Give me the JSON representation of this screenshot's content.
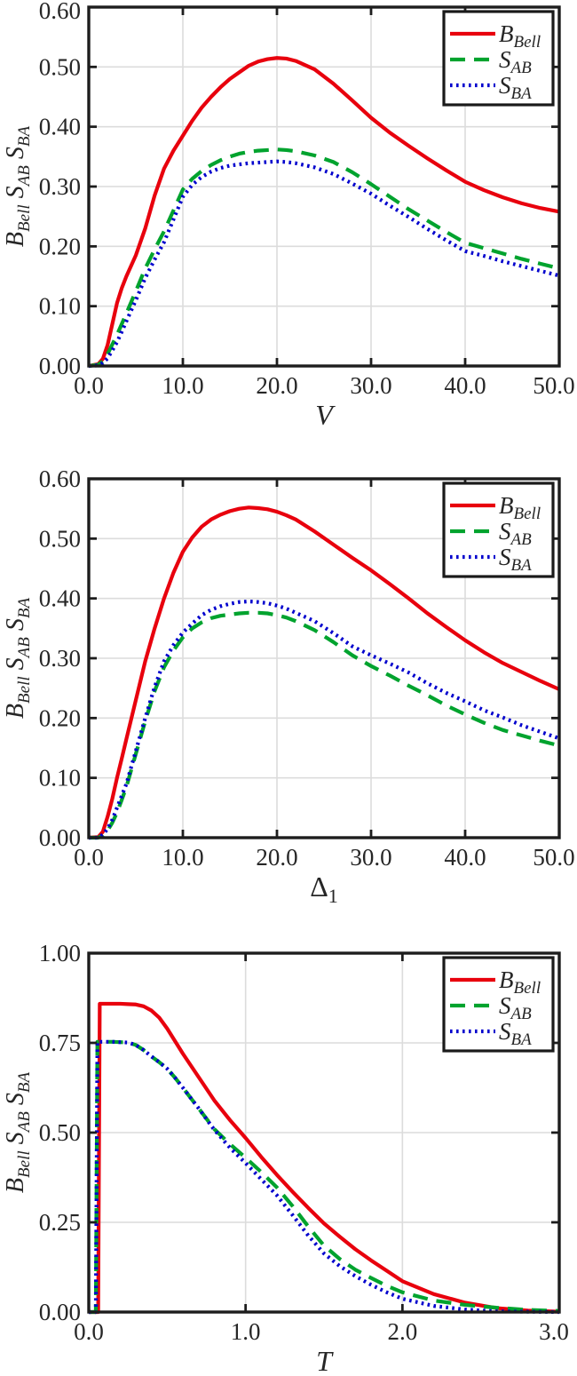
{
  "figure": {
    "background": "#ffffff",
    "text_color": "#262626",
    "frame_color": "#1d1d1d",
    "grid_color": "#dcdcdc"
  },
  "chart_data": [
    {
      "type": "line",
      "title": "",
      "xlabel": {
        "main": "V",
        "sub": "",
        "italic": true
      },
      "ylabel": "B_Bell S_AB S_BA",
      "ylabel_parts": [
        {
          "main": "B",
          "sub": "Bell"
        },
        {
          "main": "S",
          "sub": "AB"
        },
        {
          "main": "S",
          "sub": "BA"
        }
      ],
      "xlim": [
        0,
        50
      ],
      "ylim": [
        0,
        0.6
      ],
      "grid": true,
      "xtick_values": [
        0,
        10,
        20,
        30,
        40,
        50
      ],
      "xtick_labels": [
        "0.0",
        "10.0",
        "20.0",
        "30.0",
        "40.0",
        "50.0"
      ],
      "ytick_values": [
        0,
        0.1,
        0.2,
        0.3,
        0.4,
        0.5,
        0.6
      ],
      "ytick_labels": [
        "0.00",
        "0.10",
        "0.20",
        "0.30",
        "0.40",
        "0.50",
        "0.60"
      ],
      "legend": {
        "position": "top-right",
        "entries": [
          {
            "name": "B_Bell",
            "label_main": "B",
            "label_sub": "Bell",
            "color": "#e8000d",
            "style": "solid"
          },
          {
            "name": "S_AB",
            "label_main": "S",
            "label_sub": "AB",
            "color": "#00a32e",
            "style": "dashed"
          },
          {
            "name": "S_BA",
            "label_main": "S",
            "label_sub": "BA",
            "color": "#0000cd",
            "style": "dotted"
          }
        ]
      },
      "series": [
        {
          "name": "B_Bell",
          "color": "#e8000d",
          "style": "solid",
          "x": [
            0,
            1,
            1.5,
            2,
            2.5,
            3,
            3.5,
            4,
            5,
            6,
            7,
            8,
            9,
            10,
            11,
            12,
            13,
            14,
            15,
            16,
            17,
            18,
            19,
            20,
            21,
            22,
            24,
            26,
            28,
            30,
            32,
            34,
            36,
            38,
            40,
            42,
            44,
            46,
            48,
            50
          ],
          "y": [
            0,
            0.003,
            0.012,
            0.035,
            0.07,
            0.105,
            0.13,
            0.15,
            0.185,
            0.23,
            0.285,
            0.33,
            0.36,
            0.385,
            0.41,
            0.432,
            0.45,
            0.466,
            0.48,
            0.491,
            0.502,
            0.509,
            0.513,
            0.515,
            0.514,
            0.51,
            0.496,
            0.472,
            0.444,
            0.415,
            0.39,
            0.368,
            0.347,
            0.327,
            0.308,
            0.294,
            0.282,
            0.272,
            0.264,
            0.258
          ]
        },
        {
          "name": "S_AB",
          "color": "#00a32e",
          "style": "dashed",
          "x": [
            0,
            1,
            1.5,
            2,
            2.5,
            3,
            3.5,
            4,
            5,
            6,
            7,
            8,
            9,
            10,
            11,
            12,
            13,
            14,
            15,
            16,
            17,
            18,
            19,
            20,
            21,
            22,
            24,
            26,
            28,
            30,
            32,
            34,
            36,
            38,
            40,
            42,
            44,
            46,
            48,
            50
          ],
          "y": [
            0,
            0.002,
            0.008,
            0.02,
            0.036,
            0.052,
            0.07,
            0.088,
            0.125,
            0.163,
            0.195,
            0.225,
            0.26,
            0.295,
            0.313,
            0.326,
            0.336,
            0.344,
            0.35,
            0.355,
            0.358,
            0.36,
            0.361,
            0.362,
            0.361,
            0.359,
            0.352,
            0.341,
            0.324,
            0.304,
            0.283,
            0.262,
            0.243,
            0.224,
            0.206,
            0.197,
            0.188,
            0.179,
            0.171,
            0.163
          ]
        },
        {
          "name": "S_BA",
          "color": "#0000cd",
          "style": "dotted",
          "x": [
            0,
            1,
            1.5,
            2,
            2.5,
            3,
            3.5,
            4,
            5,
            6,
            7,
            8,
            9,
            10,
            11,
            12,
            13,
            14,
            15,
            16,
            17,
            18,
            19,
            20,
            21,
            22,
            24,
            26,
            28,
            30,
            32,
            34,
            36,
            38,
            40,
            42,
            44,
            46,
            48,
            50
          ],
          "y": [
            0,
            0.001,
            0.005,
            0.013,
            0.026,
            0.04,
            0.057,
            0.075,
            0.11,
            0.147,
            0.178,
            0.207,
            0.245,
            0.283,
            0.303,
            0.316,
            0.325,
            0.331,
            0.335,
            0.337,
            0.339,
            0.34,
            0.341,
            0.342,
            0.341,
            0.339,
            0.332,
            0.321,
            0.305,
            0.288,
            0.268,
            0.249,
            0.229,
            0.21,
            0.192,
            0.184,
            0.175,
            0.167,
            0.159,
            0.151
          ]
        }
      ]
    },
    {
      "type": "line",
      "title": "",
      "xlabel": {
        "main": "Δ",
        "sub": "1",
        "italic": false
      },
      "ylabel": "B_Bell S_AB S_BA",
      "ylabel_parts": [
        {
          "main": "B",
          "sub": "Bell"
        },
        {
          "main": "S",
          "sub": "AB"
        },
        {
          "main": "S",
          "sub": "BA"
        }
      ],
      "xlim": [
        0,
        50
      ],
      "ylim": [
        0,
        0.6
      ],
      "grid": true,
      "xtick_values": [
        0,
        10,
        20,
        30,
        40,
        50
      ],
      "xtick_labels": [
        "0.0",
        "10.0",
        "20.0",
        "30.0",
        "40.0",
        "50.0"
      ],
      "ytick_values": [
        0,
        0.1,
        0.2,
        0.3,
        0.4,
        0.5,
        0.6
      ],
      "ytick_labels": [
        "0.00",
        "0.10",
        "0.20",
        "0.30",
        "0.40",
        "0.50",
        "0.60"
      ],
      "legend": {
        "position": "top-right",
        "entries": [
          {
            "name": "B_Bell",
            "label_main": "B",
            "label_sub": "Bell",
            "color": "#e8000d",
            "style": "solid"
          },
          {
            "name": "S_AB",
            "label_main": "S",
            "label_sub": "AB",
            "color": "#00a32e",
            "style": "dashed"
          },
          {
            "name": "S_BA",
            "label_main": "S",
            "label_sub": "BA",
            "color": "#0000cd",
            "style": "dotted"
          }
        ]
      },
      "series": [
        {
          "name": "B_Bell",
          "color": "#e8000d",
          "style": "solid",
          "x": [
            0,
            1,
            1.5,
            2,
            2.5,
            3,
            3.5,
            4,
            5,
            6,
            7,
            8,
            9,
            10,
            11,
            12,
            13,
            14,
            15,
            16,
            17,
            18,
            19,
            20,
            21,
            22,
            24,
            26,
            28,
            30,
            32,
            34,
            36,
            38,
            40,
            42,
            44,
            46,
            48,
            50
          ],
          "y": [
            0,
            0.001,
            0.01,
            0.035,
            0.065,
            0.1,
            0.132,
            0.165,
            0.23,
            0.295,
            0.35,
            0.4,
            0.443,
            0.478,
            0.502,
            0.52,
            0.532,
            0.54,
            0.546,
            0.55,
            0.552,
            0.551,
            0.549,
            0.545,
            0.539,
            0.532,
            0.512,
            0.49,
            0.468,
            0.447,
            0.424,
            0.4,
            0.375,
            0.352,
            0.33,
            0.31,
            0.292,
            0.277,
            0.262,
            0.248
          ]
        },
        {
          "name": "S_AB",
          "color": "#00a32e",
          "style": "dashed",
          "x": [
            0,
            1,
            1.5,
            2,
            2.5,
            3,
            3.5,
            4,
            5,
            6,
            7,
            8,
            9,
            10,
            11,
            12,
            13,
            14,
            15,
            16,
            17,
            18,
            19,
            20,
            21,
            22,
            24,
            26,
            28,
            30,
            32,
            34,
            36,
            38,
            40,
            42,
            44,
            46,
            48,
            50
          ],
          "y": [
            0,
            0,
            0.004,
            0.012,
            0.025,
            0.042,
            0.063,
            0.085,
            0.14,
            0.195,
            0.245,
            0.285,
            0.313,
            0.335,
            0.35,
            0.36,
            0.367,
            0.371,
            0.373,
            0.375,
            0.376,
            0.376,
            0.375,
            0.372,
            0.368,
            0.362,
            0.347,
            0.327,
            0.305,
            0.287,
            0.271,
            0.254,
            0.238,
            0.221,
            0.206,
            0.192,
            0.18,
            0.171,
            0.162,
            0.154
          ]
        },
        {
          "name": "S_BA",
          "color": "#0000cd",
          "style": "dotted",
          "x": [
            0,
            1,
            1.5,
            2,
            2.5,
            3,
            3.5,
            4,
            5,
            6,
            7,
            8,
            9,
            10,
            11,
            12,
            13,
            14,
            15,
            16,
            17,
            18,
            19,
            20,
            21,
            22,
            24,
            26,
            28,
            30,
            32,
            34,
            36,
            38,
            40,
            42,
            44,
            46,
            48,
            50
          ],
          "y": [
            0,
            0,
            0.005,
            0.015,
            0.03,
            0.05,
            0.07,
            0.09,
            0.145,
            0.2,
            0.252,
            0.295,
            0.322,
            0.343,
            0.358,
            0.372,
            0.381,
            0.387,
            0.391,
            0.394,
            0.395,
            0.394,
            0.392,
            0.388,
            0.383,
            0.376,
            0.362,
            0.342,
            0.32,
            0.305,
            0.291,
            0.276,
            0.258,
            0.242,
            0.228,
            0.213,
            0.201,
            0.188,
            0.177,
            0.166
          ]
        }
      ]
    },
    {
      "type": "line",
      "title": "",
      "xlabel": {
        "main": "T",
        "sub": "",
        "italic": true
      },
      "ylabel": "B_Bell S_AB S_BA",
      "ylabel_parts": [
        {
          "main": "B",
          "sub": "Bell"
        },
        {
          "main": "S",
          "sub": "AB"
        },
        {
          "main": "S",
          "sub": "BA"
        }
      ],
      "xlim": [
        0,
        3
      ],
      "ylim": [
        0,
        1
      ],
      "grid": true,
      "xtick_values": [
        0,
        1,
        2,
        3
      ],
      "xtick_labels": [
        "0.0",
        "1.0",
        "2.0",
        "3.0"
      ],
      "ytick_values": [
        0,
        0.25,
        0.5,
        0.75,
        1
      ],
      "ytick_labels": [
        "0.00",
        "0.25",
        "0.50",
        "0.75",
        "1.00"
      ],
      "legend": {
        "position": "top-right",
        "entries": [
          {
            "name": "B_Bell",
            "label_main": "B",
            "label_sub": "Bell",
            "color": "#e8000d",
            "style": "solid"
          },
          {
            "name": "S_AB",
            "label_main": "S",
            "label_sub": "AB",
            "color": "#00a32e",
            "style": "dashed"
          },
          {
            "name": "S_BA",
            "label_main": "S",
            "label_sub": "BA",
            "color": "#0000cd",
            "style": "dotted"
          }
        ]
      },
      "series": [
        {
          "name": "B_Bell",
          "color": "#e8000d",
          "style": "solid",
          "x": [
            0,
            0.05,
            0.06,
            0.07,
            0.1,
            0.15,
            0.2,
            0.25,
            0.3,
            0.35,
            0.4,
            0.45,
            0.5,
            0.55,
            0.6,
            0.7,
            0.8,
            0.9,
            1.0,
            1.1,
            1.2,
            1.3,
            1.4,
            1.5,
            1.6,
            1.7,
            1.8,
            1.9,
            2.0,
            2.2,
            2.4,
            2.6,
            2.8,
            3.0
          ],
          "y": [
            0,
            0,
            0,
            0.859,
            0.859,
            0.859,
            0.859,
            0.858,
            0.857,
            0.852,
            0.84,
            0.82,
            0.79,
            0.755,
            0.72,
            0.655,
            0.59,
            0.535,
            0.485,
            0.432,
            0.382,
            0.335,
            0.29,
            0.247,
            0.21,
            0.175,
            0.144,
            0.115,
            0.086,
            0.05,
            0.026,
            0.011,
            0.004,
            0.001
          ]
        },
        {
          "name": "S_AB",
          "color": "#00a32e",
          "style": "dashed",
          "x": [
            0,
            0.04,
            0.045,
            0.055,
            0.1,
            0.15,
            0.2,
            0.25,
            0.3,
            0.35,
            0.4,
            0.45,
            0.5,
            0.55,
            0.6,
            0.7,
            0.8,
            0.9,
            1.0,
            1.1,
            1.2,
            1.3,
            1.4,
            1.5,
            1.6,
            1.7,
            1.8,
            1.9,
            2.0,
            2.2,
            2.4,
            2.6,
            2.8,
            3.0
          ],
          "y": [
            0,
            0,
            0,
            0.753,
            0.753,
            0.753,
            0.752,
            0.751,
            0.744,
            0.73,
            0.712,
            0.696,
            0.678,
            0.653,
            0.625,
            0.568,
            0.51,
            0.468,
            0.43,
            0.39,
            0.347,
            0.295,
            0.238,
            0.185,
            0.148,
            0.118,
            0.095,
            0.073,
            0.055,
            0.032,
            0.02,
            0.012,
            0.006,
            0.003
          ]
        },
        {
          "name": "S_BA",
          "color": "#0000cd",
          "style": "dotted",
          "x": [
            0,
            0.04,
            0.045,
            0.055,
            0.1,
            0.15,
            0.2,
            0.25,
            0.3,
            0.35,
            0.4,
            0.45,
            0.5,
            0.55,
            0.6,
            0.7,
            0.8,
            0.9,
            1.0,
            1.1,
            1.2,
            1.3,
            1.4,
            1.5,
            1.6,
            1.7,
            1.8,
            1.9,
            2.0,
            2.2,
            2.4,
            2.6,
            2.8,
            3.0
          ],
          "y": [
            0,
            0,
            0,
            0.753,
            0.753,
            0.753,
            0.752,
            0.751,
            0.744,
            0.73,
            0.712,
            0.696,
            0.678,
            0.653,
            0.625,
            0.568,
            0.508,
            0.458,
            0.415,
            0.37,
            0.325,
            0.27,
            0.213,
            0.163,
            0.128,
            0.1,
            0.076,
            0.055,
            0.037,
            0.017,
            0.007,
            0.002,
            0.001,
            0
          ]
        }
      ]
    }
  ]
}
